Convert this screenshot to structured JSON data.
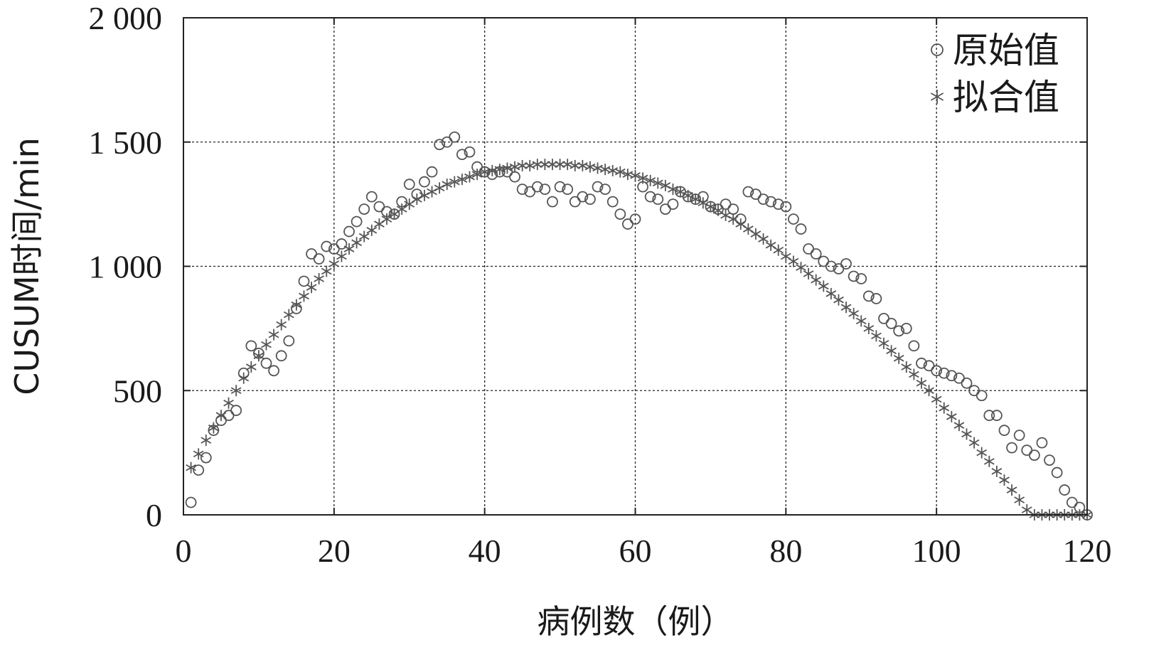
{
  "chart_data": {
    "type": "scatter",
    "xlabel": "病例数（例）",
    "ylabel": "CUSUM时间/min",
    "xlim": [
      0,
      120
    ],
    "ylim": [
      0,
      2000
    ],
    "x_ticks": [
      0,
      20,
      40,
      60,
      80,
      100,
      120
    ],
    "y_ticks": [
      0,
      500,
      1000,
      1500,
      2000
    ],
    "x_tick_labels": [
      "0",
      "20",
      "40",
      "60",
      "80",
      "100",
      "120"
    ],
    "y_tick_labels": [
      "0",
      "500",
      "1 000",
      "1 500",
      "2 000"
    ],
    "grid": true,
    "legend_position": "top-right",
    "legend": [
      "原始值",
      "拟合值"
    ],
    "series": [
      {
        "name": "原始值",
        "marker": "circle",
        "color": "#555555",
        "x": [
          1,
          2,
          3,
          4,
          5,
          6,
          7,
          8,
          9,
          10,
          11,
          12,
          13,
          14,
          15,
          16,
          17,
          18,
          19,
          20,
          21,
          22,
          23,
          24,
          25,
          26,
          27,
          28,
          29,
          30,
          31,
          32,
          33,
          34,
          35,
          36,
          37,
          38,
          39,
          40,
          41,
          42,
          43,
          44,
          45,
          46,
          47,
          48,
          49,
          50,
          51,
          52,
          53,
          54,
          55,
          56,
          57,
          58,
          59,
          60,
          61,
          62,
          63,
          64,
          65,
          66,
          67,
          68,
          69,
          70,
          71,
          72,
          73,
          74,
          75,
          76,
          77,
          78,
          79,
          80,
          81,
          82,
          83,
          84,
          85,
          86,
          87,
          88,
          89,
          90,
          91,
          92,
          93,
          94,
          95,
          96,
          97,
          98,
          99,
          100,
          101,
          102,
          103,
          104,
          105,
          106,
          107,
          108,
          109,
          110,
          111,
          112,
          113,
          114,
          115,
          116,
          117,
          118,
          119,
          120
        ],
        "y": [
          50,
          180,
          230,
          340,
          380,
          400,
          420,
          570,
          680,
          650,
          610,
          580,
          640,
          700,
          830,
          940,
          1050,
          1030,
          1080,
          1070,
          1090,
          1140,
          1180,
          1230,
          1280,
          1240,
          1220,
          1210,
          1260,
          1330,
          1290,
          1340,
          1380,
          1490,
          1500,
          1520,
          1450,
          1460,
          1400,
          1380,
          1370,
          1380,
          1380,
          1360,
          1310,
          1300,
          1320,
          1310,
          1260,
          1320,
          1310,
          1260,
          1280,
          1270,
          1320,
          1310,
          1260,
          1210,
          1170,
          1190,
          1320,
          1280,
          1270,
          1230,
          1250,
          1300,
          1280,
          1270,
          1280,
          1240,
          1230,
          1250,
          1230,
          1190,
          1300,
          1290,
          1270,
          1260,
          1250,
          1240,
          1190,
          1150,
          1070,
          1050,
          1020,
          1000,
          990,
          1010,
          960,
          950,
          880,
          870,
          790,
          770,
          740,
          750,
          680,
          610,
          600,
          580,
          570,
          560,
          550,
          530,
          500,
          480,
          400,
          400,
          340,
          270,
          320,
          260,
          240,
          290,
          220,
          170,
          100,
          50,
          30,
          0
        ]
      },
      {
        "name": "拟合值",
        "marker": "star",
        "color": "#555555",
        "x": [
          1,
          2,
          3,
          4,
          5,
          6,
          7,
          8,
          9,
          10,
          11,
          12,
          13,
          14,
          15,
          16,
          17,
          18,
          19,
          20,
          21,
          22,
          23,
          24,
          25,
          26,
          27,
          28,
          29,
          30,
          31,
          32,
          33,
          34,
          35,
          36,
          37,
          38,
          39,
          40,
          41,
          42,
          43,
          44,
          45,
          46,
          47,
          48,
          49,
          50,
          51,
          52,
          53,
          54,
          55,
          56,
          57,
          58,
          59,
          60,
          61,
          62,
          63,
          64,
          65,
          66,
          67,
          68,
          69,
          70,
          71,
          72,
          73,
          74,
          75,
          76,
          77,
          78,
          79,
          80,
          81,
          82,
          83,
          84,
          85,
          86,
          87,
          88,
          89,
          90,
          91,
          92,
          93,
          94,
          95,
          96,
          97,
          98,
          99,
          100,
          101,
          102,
          103,
          104,
          105,
          106,
          107,
          108,
          109,
          110,
          111,
          112,
          113,
          114,
          115,
          116,
          117,
          118,
          119,
          120
        ],
        "y": [
          190,
          245,
          300,
          350,
          400,
          450,
          500,
          550,
          595,
          640,
          685,
          725,
          765,
          805,
          845,
          880,
          915,
          950,
          980,
          1010,
          1040,
          1070,
          1095,
          1120,
          1145,
          1170,
          1190,
          1210,
          1230,
          1250,
          1270,
          1285,
          1300,
          1315,
          1330,
          1340,
          1350,
          1360,
          1370,
          1380,
          1385,
          1390,
          1395,
          1400,
          1405,
          1405,
          1410,
          1410,
          1410,
          1410,
          1410,
          1405,
          1405,
          1400,
          1395,
          1390,
          1385,
          1380,
          1370,
          1365,
          1355,
          1345,
          1335,
          1325,
          1310,
          1300,
          1285,
          1270,
          1255,
          1240,
          1225,
          1205,
          1190,
          1170,
          1150,
          1130,
          1110,
          1085,
          1065,
          1040,
          1020,
          995,
          970,
          945,
          920,
          890,
          865,
          835,
          810,
          780,
          750,
          720,
          690,
          660,
          630,
          595,
          565,
          530,
          500,
          465,
          430,
          395,
          360,
          325,
          290,
          250,
          215,
          175,
          140,
          100,
          60,
          20,
          0,
          0,
          0,
          0,
          0,
          0,
          0,
          0
        ]
      }
    ]
  }
}
